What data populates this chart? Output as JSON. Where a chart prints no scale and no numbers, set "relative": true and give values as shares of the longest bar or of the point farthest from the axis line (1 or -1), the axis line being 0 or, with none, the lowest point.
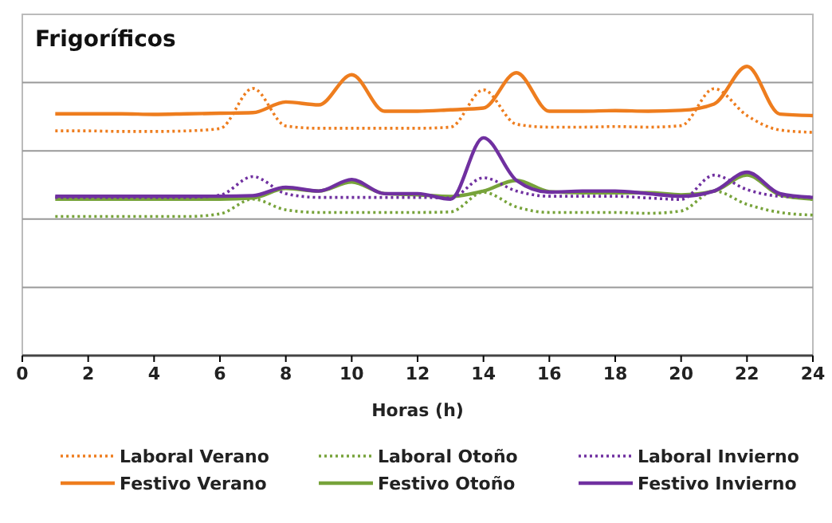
{
  "chart_data": {
    "type": "line",
    "title": "Frigoríficos",
    "xlabel": "Horas (h)",
    "relative": true,
    "x": [
      1,
      2,
      3,
      4,
      5,
      6,
      7,
      8,
      9,
      10,
      11,
      12,
      13,
      14,
      15,
      16,
      17,
      18,
      19,
      20,
      21,
      22,
      23,
      24
    ],
    "xlim": [
      0,
      24
    ],
    "xticks": [
      0,
      2,
      4,
      6,
      8,
      10,
      12,
      14,
      16,
      18,
      20,
      22,
      24
    ],
    "grid": "y",
    "legend": "bottom",
    "marker": "none",
    "series": [
      {
        "name": "Laboral Verano",
        "color": "#ee7d1e",
        "line_style": "dotted",
        "values": [
          0.777,
          0.777,
          0.775,
          0.775,
          0.777,
          0.785,
          0.924,
          0.794,
          0.786,
          0.786,
          0.786,
          0.786,
          0.79,
          0.919,
          0.8,
          0.79,
          0.79,
          0.792,
          0.79,
          0.795,
          0.923,
          0.83,
          0.78,
          0.772
        ]
      },
      {
        "name": "Festivo Verano",
        "color": "#ee7d1e",
        "line_style": "solid",
        "values": [
          0.836,
          0.836,
          0.836,
          0.834,
          0.836,
          0.838,
          0.84,
          0.877,
          0.867,
          0.971,
          0.845,
          0.845,
          0.85,
          0.856,
          0.978,
          0.845,
          0.845,
          0.847,
          0.845,
          0.848,
          0.87,
          1,
          0.835,
          0.83
        ]
      },
      {
        "name": "Laboral Otoño",
        "color": "#77a33a",
        "line_style": "dotted",
        "values": [
          0.481,
          0.481,
          0.481,
          0.481,
          0.481,
          0.49,
          0.541,
          0.504,
          0.495,
          0.495,
          0.495,
          0.495,
          0.497,
          0.565,
          0.514,
          0.495,
          0.495,
          0.495,
          0.492,
          0.5,
          0.569,
          0.523,
          0.495,
          0.486
        ]
      },
      {
        "name": "Festivo Otoño",
        "color": "#77a33a",
        "line_style": "solid",
        "values": [
          0.541,
          0.541,
          0.541,
          0.541,
          0.541,
          0.541,
          0.545,
          0.578,
          0.569,
          0.6,
          0.56,
          0.556,
          0.55,
          0.569,
          0.606,
          0.567,
          0.563,
          0.563,
          0.563,
          0.556,
          0.569,
          0.624,
          0.556,
          0.541
        ]
      },
      {
        "name": "Laboral Invierno",
        "color": "#7030a0",
        "line_style": "dotted",
        "values": [
          0.547,
          0.547,
          0.547,
          0.547,
          0.547,
          0.555,
          0.619,
          0.56,
          0.547,
          0.547,
          0.547,
          0.547,
          0.545,
          0.615,
          0.569,
          0.551,
          0.551,
          0.551,
          0.545,
          0.54,
          0.624,
          0.574,
          0.551,
          0.547
        ]
      },
      {
        "name": "Festivo Invierno",
        "color": "#7030a0",
        "line_style": "solid",
        "values": [
          0.551,
          0.551,
          0.551,
          0.551,
          0.551,
          0.551,
          0.553,
          0.582,
          0.569,
          0.609,
          0.56,
          0.56,
          0.541,
          0.753,
          0.606,
          0.565,
          0.569,
          0.569,
          0.56,
          0.551,
          0.569,
          0.634,
          0.56,
          0.547
        ]
      }
    ]
  }
}
